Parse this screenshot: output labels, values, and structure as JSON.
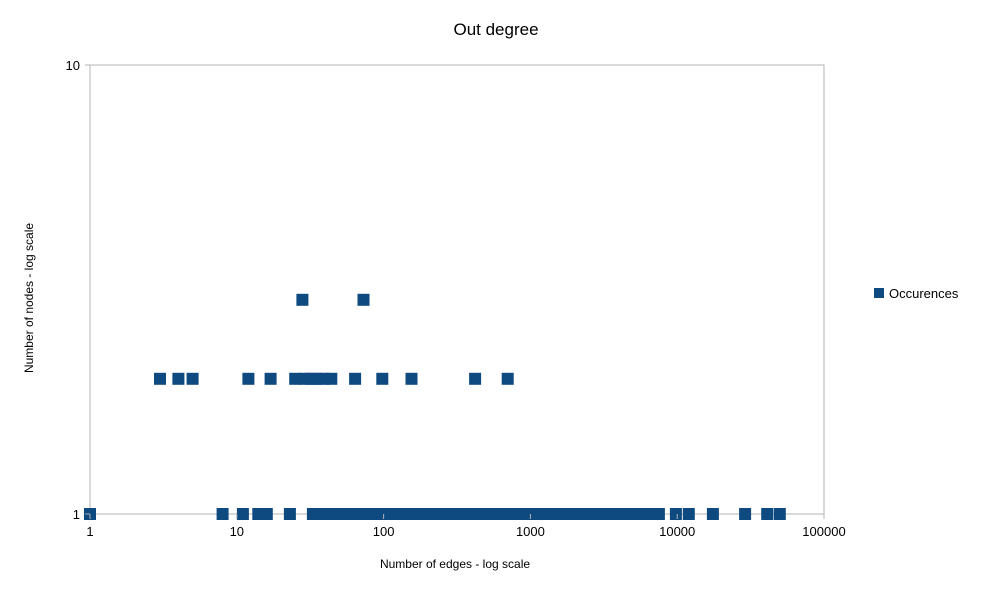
{
  "chart_data": {
    "type": "scatter",
    "title": "Out degree",
    "xlabel": "Number of edges - log scale",
    "ylabel": "Number of nodes - log scale",
    "x_scale": "log",
    "y_scale": "log",
    "xlim": [
      1,
      100000
    ],
    "ylim": [
      1,
      10
    ],
    "x_ticks": [
      "1",
      "10",
      "100",
      "1000",
      "10000",
      "100000"
    ],
    "y_ticks": [
      "1",
      "10"
    ],
    "grid": false,
    "legend_position": "right",
    "marker_color": "#0e4a80",
    "series": [
      {
        "name": "Occurences",
        "points": [
          {
            "x": 1,
            "y": 1
          },
          {
            "x": 3,
            "y": 2
          },
          {
            "x": 4,
            "y": 2
          },
          {
            "x": 5,
            "y": 2
          },
          {
            "x": 8,
            "y": 1
          },
          {
            "x": 11,
            "y": 1
          },
          {
            "x": 12,
            "y": 2
          },
          {
            "x": 14,
            "y": 1
          },
          {
            "x": 16,
            "y": 1
          },
          {
            "x": 17,
            "y": 2
          },
          {
            "x": 23,
            "y": 1
          },
          {
            "x": 25,
            "y": 2
          },
          {
            "x": 28,
            "y": 3
          },
          {
            "x": 29,
            "y": 2
          },
          {
            "x": 32,
            "y": 2
          },
          {
            "x": 35,
            "y": 2
          },
          {
            "x": 39,
            "y": 2
          },
          {
            "x": 44,
            "y": 2
          },
          {
            "x": 64,
            "y": 2
          },
          {
            "x": 73,
            "y": 3
          },
          {
            "x": 98,
            "y": 2
          },
          {
            "x": 155,
            "y": 2
          },
          {
            "x": 420,
            "y": 2
          },
          {
            "x": 700,
            "y": 2
          },
          {
            "x": 33,
            "y": 1
          },
          {
            "x": 36,
            "y": 1
          },
          {
            "x": 40,
            "y": 1
          },
          {
            "x": 44,
            "y": 1
          },
          {
            "x": 49,
            "y": 1
          },
          {
            "x": 55,
            "y": 1
          },
          {
            "x": 61,
            "y": 1
          },
          {
            "x": 68,
            "y": 1
          },
          {
            "x": 76,
            "y": 1
          },
          {
            "x": 85,
            "y": 1
          },
          {
            "x": 95,
            "y": 1
          },
          {
            "x": 106,
            "y": 1
          },
          {
            "x": 118,
            "y": 1
          },
          {
            "x": 132,
            "y": 1
          },
          {
            "x": 147,
            "y": 1
          },
          {
            "x": 164,
            "y": 1
          },
          {
            "x": 183,
            "y": 1
          },
          {
            "x": 204,
            "y": 1
          },
          {
            "x": 228,
            "y": 1
          },
          {
            "x": 254,
            "y": 1
          },
          {
            "x": 283,
            "y": 1
          },
          {
            "x": 316,
            "y": 1
          },
          {
            "x": 352,
            "y": 1
          },
          {
            "x": 393,
            "y": 1
          },
          {
            "x": 438,
            "y": 1
          },
          {
            "x": 489,
            "y": 1
          },
          {
            "x": 545,
            "y": 1
          },
          {
            "x": 608,
            "y": 1
          },
          {
            "x": 678,
            "y": 1
          },
          {
            "x": 756,
            "y": 1
          },
          {
            "x": 843,
            "y": 1
          },
          {
            "x": 940,
            "y": 1
          },
          {
            "x": 1049,
            "y": 1
          },
          {
            "x": 1170,
            "y": 1
          },
          {
            "x": 1305,
            "y": 1
          },
          {
            "x": 1455,
            "y": 1
          },
          {
            "x": 1623,
            "y": 1
          },
          {
            "x": 1810,
            "y": 1
          },
          {
            "x": 2019,
            "y": 1
          },
          {
            "x": 2252,
            "y": 1
          },
          {
            "x": 2512,
            "y": 1
          },
          {
            "x": 2801,
            "y": 1
          },
          {
            "x": 3125,
            "y": 1
          },
          {
            "x": 3485,
            "y": 1
          },
          {
            "x": 3887,
            "y": 1
          },
          {
            "x": 4335,
            "y": 1
          },
          {
            "x": 4835,
            "y": 1
          },
          {
            "x": 5393,
            "y": 1
          },
          {
            "x": 6015,
            "y": 1
          },
          {
            "x": 6709,
            "y": 1
          },
          {
            "x": 7500,
            "y": 1
          },
          {
            "x": 9800,
            "y": 1
          },
          {
            "x": 12000,
            "y": 1
          },
          {
            "x": 17500,
            "y": 1
          },
          {
            "x": 29000,
            "y": 1
          },
          {
            "x": 41000,
            "y": 1
          },
          {
            "x": 50000,
            "y": 1
          }
        ]
      }
    ]
  }
}
